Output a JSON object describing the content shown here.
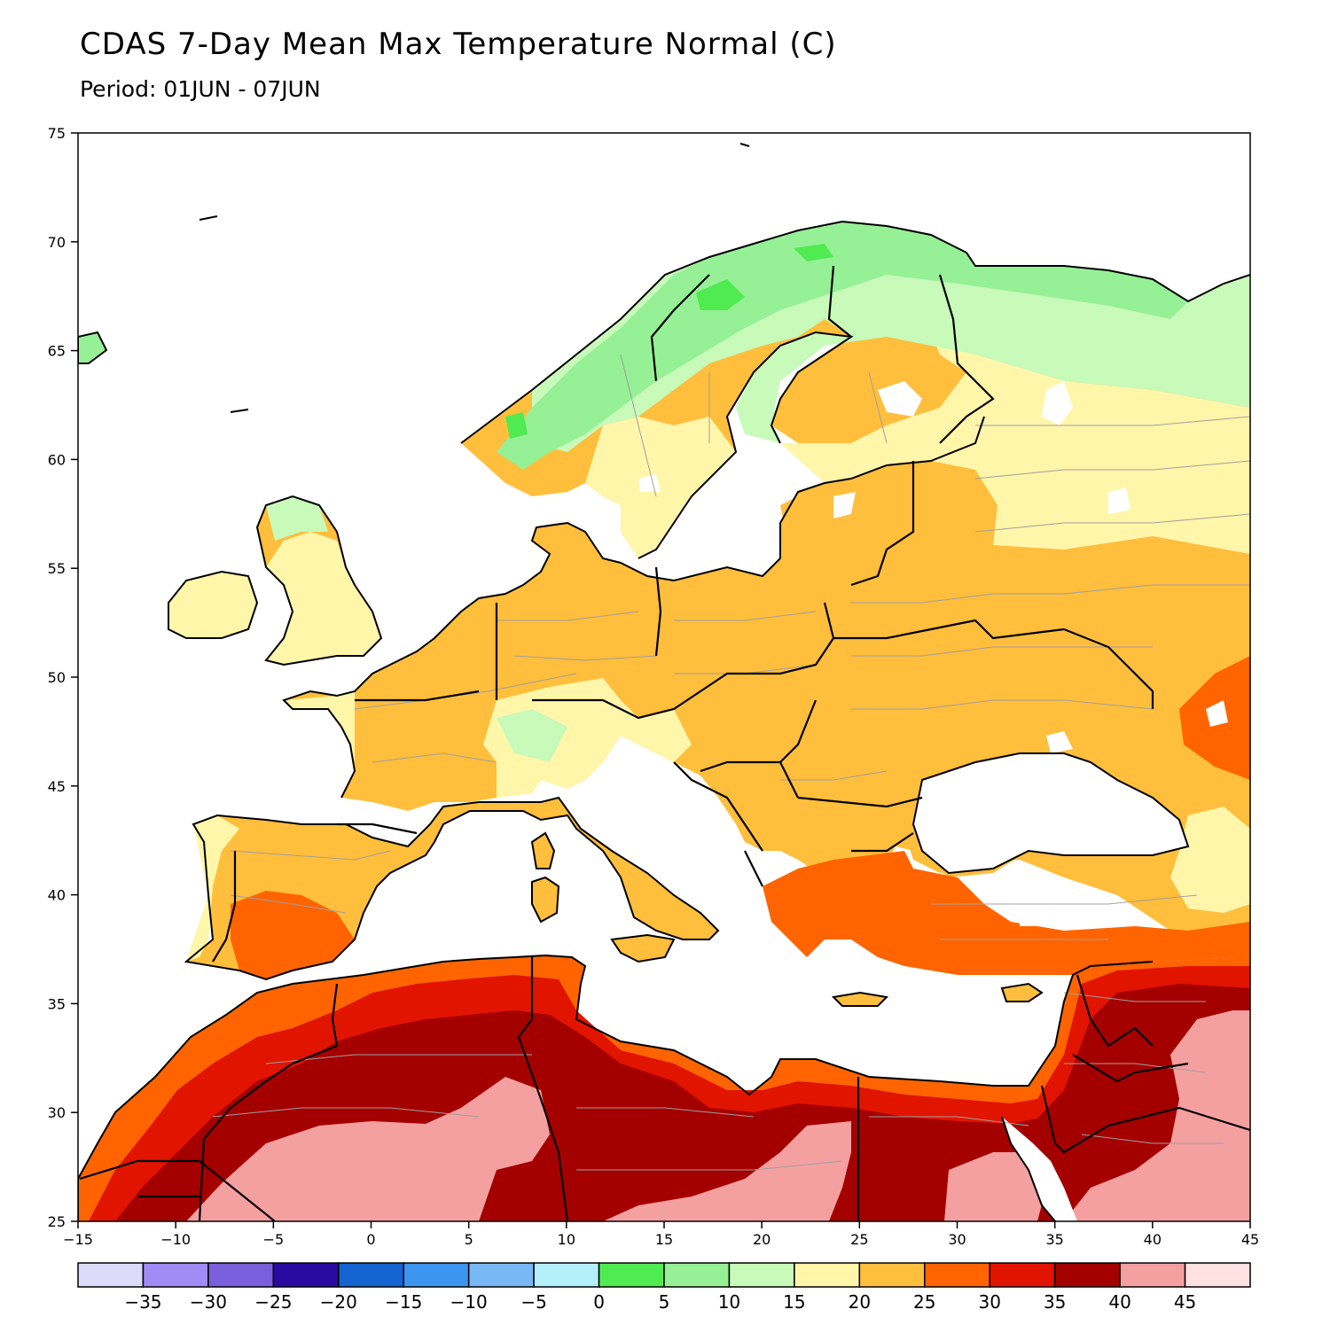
{
  "title": "CDAS 7-Day Mean Max Temperature Normal (C)",
  "subtitle": "Period: 01JUN - 07JUN",
  "map": {
    "region": "Europe, North Africa and Middle East",
    "projection": "lat-lon",
    "lon_range": [
      -15,
      45
    ],
    "lat_range": [
      25,
      75
    ],
    "x_ticks": [
      "-15",
      "-10",
      "-5",
      "0",
      "5",
      "10",
      "15",
      "20",
      "25",
      "30",
      "35",
      "40",
      "45"
    ],
    "y_ticks": [
      "25",
      "30",
      "35",
      "40",
      "45",
      "50",
      "55",
      "60",
      "65",
      "70",
      "75"
    ],
    "ocean_color": "#ffffff",
    "coastline_color": "#000000",
    "admin_border_color": "#a0a0a0"
  },
  "legend": {
    "labels": [
      "-35",
      "-30",
      "-25",
      "-20",
      "-15",
      "-10",
      "-5",
      "0",
      "5",
      "10",
      "15",
      "20",
      "25",
      "30",
      "35",
      "40",
      "45"
    ],
    "colors": [
      "#dcdcfa",
      "#a08cf5",
      "#7a5fdc",
      "#2a0aa0",
      "#1464d2",
      "#3c96f0",
      "#78b9f5",
      "#b4f0fa",
      "#50eb50",
      "#96f096",
      "#c8faba",
      "#fff6aa",
      "#ffbe3c",
      "#ff6400",
      "#e11400",
      "#a50000",
      "#f5a0a0",
      "#ffe1e1"
    ]
  }
}
